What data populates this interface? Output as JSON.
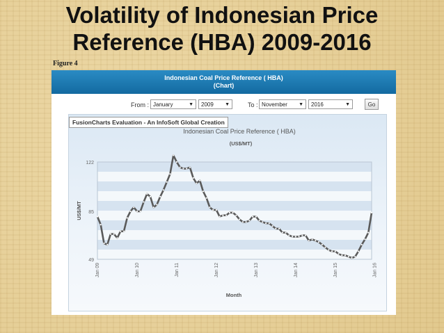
{
  "slide": {
    "title_line1": "Volatility of Indonesian Price",
    "title_line2": "Reference (HBA) 2009-2016",
    "figure_label": "Figure 4"
  },
  "panel": {
    "header_line1": "Indonesian Coal Price Reference ( HBA)",
    "header_line2": "(Chart)",
    "from_label": "From :",
    "from_month": "January",
    "from_year": "2009",
    "to_label": "To :",
    "to_month": "November",
    "to_year": "2016",
    "go_label": "Go",
    "evaluation_text": "FusionCharts Evaluation - An InfoSoft Global Creation"
  },
  "colors": {
    "header_blue": "#1a78b4",
    "line": "#555555",
    "marker": "#ffffff",
    "band": "#d6e3f0"
  },
  "chart_data": {
    "type": "line",
    "title": "Indonesian Coal Price Reference ( HBA)",
    "subtitle": "(US$/MT)",
    "xlabel": "Month",
    "ylabel": "US$/MT",
    "ylim": [
      49,
      122
    ],
    "yticks": [
      49,
      85,
      122
    ],
    "xticks": [
      "Jan 09",
      "Jan 10",
      "Jan 11",
      "Jan 12",
      "Jan 13",
      "Jan 14",
      "Jan 15",
      "Jan 16"
    ],
    "grid": true,
    "legend": "none",
    "series": [
      {
        "values": [
          81,
          75,
          61,
          60,
          68,
          68,
          65,
          70,
          70,
          80,
          85,
          88,
          85,
          85,
          92,
          98,
          96,
          88,
          90,
          96,
          101,
          107,
          113,
          127,
          122,
          118,
          117,
          117,
          118,
          110,
          106,
          108,
          100,
          95,
          88,
          86,
          86,
          81,
          82,
          82,
          84,
          84,
          82,
          79,
          77,
          77,
          78,
          81,
          81,
          78,
          77,
          76,
          76,
          74,
          72,
          72,
          69,
          69,
          67,
          66,
          66,
          66,
          67,
          67,
          63,
          64,
          63,
          62,
          60,
          58,
          56,
          55,
          55,
          53,
          52,
          52,
          51,
          50,
          51,
          55,
          60,
          64,
          69,
          84
        ]
      }
    ]
  }
}
